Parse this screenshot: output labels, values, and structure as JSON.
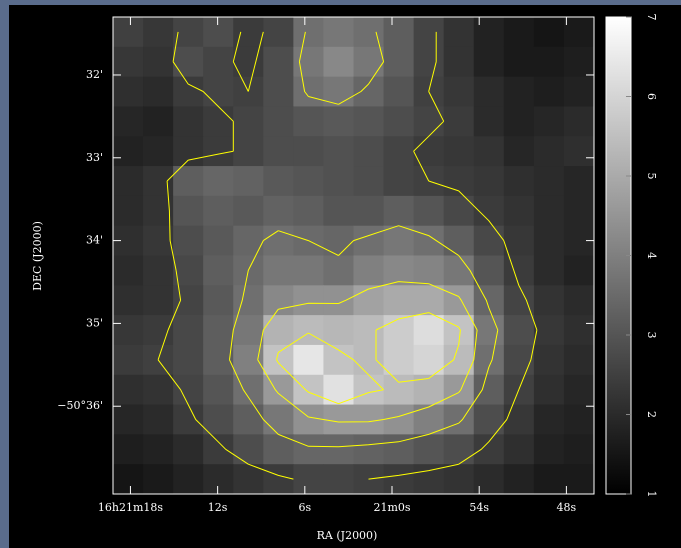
{
  "chart_data": {
    "type": "image",
    "xlabel": "RA (J2000)",
    "ylabel": "DEC (J2000)",
    "xlim": [
      79.2,
      46.1
    ],
    "xticks": [
      {
        "value": 78,
        "label": "16h21m18s"
      },
      {
        "value": 72,
        "label": "12s"
      },
      {
        "value": 66,
        "label": "6s"
      },
      {
        "value": 60,
        "label": "21m0s"
      },
      {
        "value": 54,
        "label": "54s"
      },
      {
        "value": 48,
        "label": "48s"
      }
    ],
    "ylim": [
      -37.06,
      -31.3
    ],
    "yticks": [
      {
        "value": -32,
        "label": "32'"
      },
      {
        "value": -33,
        "label": "33'"
      },
      {
        "value": -34,
        "label": "34'"
      },
      {
        "value": -35,
        "label": "35'"
      },
      {
        "value": -36,
        "label": "−50°36'"
      }
    ],
    "zlim": [
      1,
      7
    ],
    "zticks": [
      1,
      2,
      3,
      4,
      5,
      6,
      7
    ],
    "contour_levels": [
      2.5,
      3.5,
      4.5,
      5.5
    ],
    "contour_color": "#ffff00",
    "image": [
      [
        2.5,
        2.3,
        2.6,
        2.8,
        2.4,
        2.6,
        3.6,
        3.8,
        3.6,
        3.2,
        2.6,
        2.2,
        1.8,
        1.6,
        1.5,
        1.6
      ],
      [
        2.3,
        2.2,
        2.8,
        2.6,
        2.4,
        2.8,
        3.8,
        4.2,
        3.8,
        3.2,
        2.6,
        2.2,
        1.8,
        1.6,
        1.6,
        1.7
      ],
      [
        2.1,
        2.0,
        2.4,
        2.6,
        2.5,
        2.8,
        3.6,
        3.8,
        3.4,
        3.0,
        2.5,
        2.3,
        2.0,
        1.8,
        1.7,
        1.8
      ],
      [
        1.9,
        1.8,
        2.2,
        2.4,
        2.6,
        2.8,
        3.0,
        3.1,
        3.0,
        2.8,
        2.6,
        2.4,
        2.0,
        1.8,
        1.9,
        2.0
      ],
      [
        1.8,
        1.9,
        2.2,
        2.4,
        2.6,
        2.8,
        2.8,
        2.9,
        2.8,
        2.6,
        2.4,
        2.3,
        2.2,
        1.9,
        2.0,
        2.1
      ],
      [
        2.0,
        2.2,
        3.2,
        3.4,
        3.3,
        3.1,
        3.0,
        2.9,
        2.8,
        2.6,
        2.5,
        2.4,
        2.3,
        2.1,
        2.0,
        1.9
      ],
      [
        2.0,
        2.2,
        3.0,
        3.2,
        3.1,
        3.3,
        3.2,
        3.0,
        3.0,
        3.2,
        3.0,
        2.7,
        2.4,
        2.2,
        2.0,
        1.9
      ],
      [
        2.1,
        2.3,
        2.8,
        3.1,
        3.4,
        3.6,
        3.5,
        3.4,
        3.6,
        3.8,
        3.6,
        3.2,
        2.7,
        2.3,
        2.0,
        1.9
      ],
      [
        2.0,
        2.2,
        2.7,
        3.2,
        3.5,
        3.8,
        3.8,
        3.6,
        4.0,
        4.2,
        4.1,
        3.8,
        3.0,
        2.4,
        2.0,
        1.8
      ],
      [
        2.1,
        2.2,
        2.6,
        3.1,
        3.6,
        4.2,
        4.4,
        4.4,
        4.8,
        5.0,
        5.0,
        4.6,
        3.4,
        2.6,
        2.2,
        2.0
      ],
      [
        2.3,
        2.4,
        2.7,
        3.2,
        3.8,
        5.2,
        5.4,
        5.3,
        5.4,
        5.8,
        6.2,
        5.6,
        3.8,
        2.8,
        2.3,
        2.1
      ],
      [
        2.4,
        2.5,
        2.7,
        3.2,
        4.0,
        5.6,
        6.4,
        5.6,
        5.4,
        5.8,
        6.0,
        5.4,
        3.6,
        2.7,
        2.2,
        2.0
      ],
      [
        2.1,
        2.2,
        2.6,
        3.0,
        3.6,
        4.6,
        5.6,
        6.3,
        5.6,
        5.4,
        5.2,
        4.6,
        3.2,
        2.5,
        2.1,
        1.9
      ],
      [
        1.9,
        2.0,
        2.4,
        2.8,
        3.2,
        3.8,
        4.4,
        4.6,
        4.6,
        4.4,
        4.0,
        3.6,
        2.8,
        2.3,
        1.9,
        1.8
      ],
      [
        1.7,
        1.8,
        2.0,
        2.4,
        2.8,
        3.2,
        3.4,
        3.4,
        3.3,
        3.2,
        3.0,
        2.8,
        2.4,
        2.1,
        1.8,
        1.7
      ],
      [
        1.5,
        1.6,
        1.8,
        2.0,
        2.2,
        2.4,
        2.6,
        2.6,
        2.5,
        2.4,
        2.3,
        2.2,
        2.0,
        1.8,
        1.6,
        1.6
      ]
    ]
  }
}
